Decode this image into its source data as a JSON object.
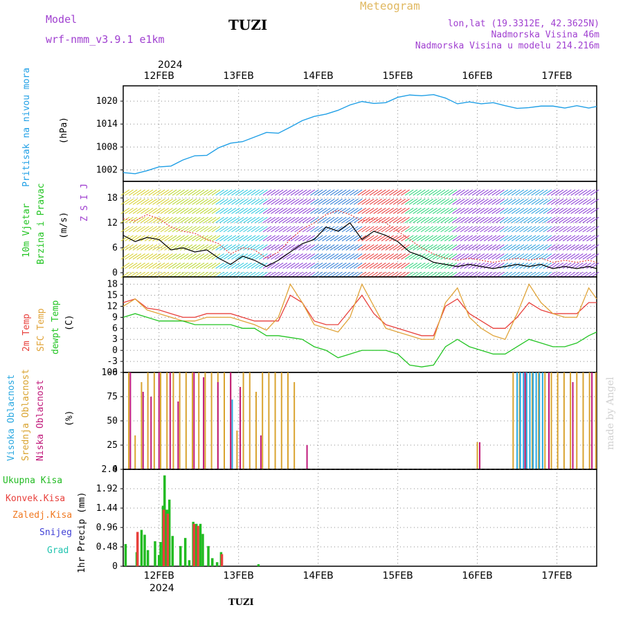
{
  "header": {
    "model_label": "Model",
    "model_name": "wrf-nmm_v3.9.1 e1km",
    "station_title": "TUZI",
    "meteogram_label": "Meteogram",
    "coords": "lon,lat (19.3312E, 42.3625N)",
    "elevation": "Nadmorska Visina 46m",
    "model_elevation": "Nadmorska Visina u modelu 214.216m",
    "year_top": "2024",
    "year_bottom": "2024",
    "footer_station": "TUZI",
    "watermark": "made by Angel"
  },
  "colors": {
    "pressure": "#1f9fe6",
    "temp2m": "#e8403c",
    "sfc_temp": "#e0a43a",
    "dewpoint": "#22c422",
    "high_cloud": "#2aa8e0",
    "mid_cloud": "#d9a32f",
    "low_cloud": "#c0187a",
    "total_precip": "#22bb22",
    "conv_precip": "#e8403c",
    "frozen_precip": "#f07820",
    "snow": "#3f3fd6",
    "graupel": "#22c4b0",
    "wind_label": "#22c422",
    "wind_dir": "#a040d0"
  },
  "x_dates": [
    "12FEB",
    "13FEB",
    "14FEB",
    "15FEB",
    "16FEB",
    "17FEB"
  ],
  "chart_data": [
    {
      "type": "line",
      "panel": "pressure",
      "ylabel_top": "Pritisak na nivou mora",
      "unit": "(hPa)",
      "yticks": [
        1002,
        1008,
        1014,
        1020
      ],
      "ylim": [
        999,
        1024
      ],
      "xlim": [
        11.55,
        17.5
      ],
      "grid": true,
      "x": [
        11.55,
        11.7,
        11.85,
        12.0,
        12.15,
        12.3,
        12.45,
        12.6,
        12.75,
        12.9,
        13.05,
        13.2,
        13.35,
        13.5,
        13.65,
        13.8,
        13.95,
        14.1,
        14.25,
        14.4,
        14.55,
        14.7,
        14.85,
        15.0,
        15.15,
        15.3,
        15.45,
        15.6,
        15.75,
        15.9,
        16.05,
        16.2,
        16.35,
        16.5,
        16.65,
        16.8,
        16.95,
        17.1,
        17.25,
        17.4,
        17.5
      ],
      "values": [
        1001.3,
        1001.0,
        1001.8,
        1002.8,
        1003.0,
        1004.6,
        1005.7,
        1005.8,
        1007.8,
        1009.0,
        1009.4,
        1010.6,
        1011.8,
        1011.6,
        1013.2,
        1014.9,
        1016.0,
        1016.6,
        1017.6,
        1019.0,
        1019.9,
        1019.4,
        1019.6,
        1021.0,
        1021.6,
        1021.4,
        1021.7,
        1020.8,
        1019.3,
        1019.8,
        1019.3,
        1019.6,
        1018.8,
        1018.1,
        1018.3,
        1018.7,
        1018.7,
        1018.2,
        1018.8,
        1018.2,
        1018.6
      ],
      "series_name": "",
      "line_color_key": "pressure"
    },
    {
      "type": "line",
      "panel": "wind",
      "ylabel_top": "10m Vjetar",
      "ylabel_bottom": "Brzina i Pravac",
      "unit": "(m/s)",
      "compass": "Z S I J",
      "yticks": [
        0,
        6,
        12,
        18
      ],
      "ylim": [
        -1,
        22
      ],
      "xlim": [
        11.55,
        17.5
      ],
      "grid": true,
      "series": [
        {
          "name": "",
          "x": [
            11.55,
            11.7,
            11.85,
            12.0,
            12.15,
            12.3,
            12.45,
            12.6,
            12.75,
            12.9,
            13.05,
            13.2,
            13.35,
            13.5,
            13.65,
            13.8,
            13.95,
            14.1,
            14.25,
            14.4,
            14.55,
            14.7,
            14.85,
            15.0,
            15.15,
            15.3,
            15.45,
            15.6,
            15.75,
            15.9,
            16.05,
            16.2,
            16.35,
            16.5,
            16.65,
            16.8,
            16.95,
            17.1,
            17.25,
            17.4,
            17.5
          ],
          "values": [
            9.0,
            7.5,
            8.5,
            8.0,
            5.5,
            6.0,
            5.0,
            5.5,
            3.5,
            2.0,
            4.0,
            3.0,
            1.5,
            3.0,
            5.0,
            7.0,
            8.0,
            11.0,
            10.0,
            12.0,
            8.0,
            10.0,
            9.0,
            7.5,
            5.0,
            4.0,
            2.5,
            2.0,
            1.5,
            2.0,
            1.5,
            1.0,
            1.5,
            2.0,
            1.5,
            2.0,
            1.0,
            1.5,
            1.0,
            1.5,
            1.0
          ]
        },
        {
          "name": "",
          "x": [
            11.55,
            11.7,
            11.85,
            12.0,
            12.15,
            12.3,
            12.45,
            12.6,
            12.75,
            12.9,
            13.05,
            13.2,
            13.35,
            13.5,
            13.65,
            13.8,
            13.95,
            14.1,
            14.25,
            14.4,
            14.55,
            14.7,
            14.85,
            15.0,
            15.15,
            15.3,
            15.45,
            15.6,
            15.75,
            15.9,
            16.05,
            16.2,
            16.35,
            16.5,
            16.65,
            16.8,
            16.95,
            17.1,
            17.25,
            17.4,
            17.5
          ],
          "values": [
            13.0,
            12.5,
            14.0,
            13.0,
            11.0,
            10.0,
            9.5,
            8.0,
            7.0,
            4.5,
            6.0,
            5.5,
            3.5,
            5.0,
            8.0,
            10.5,
            12.0,
            14.0,
            15.0,
            14.0,
            12.5,
            13.0,
            12.0,
            10.0,
            8.0,
            6.0,
            4.5,
            3.5,
            3.0,
            3.5,
            3.0,
            2.5,
            3.0,
            3.5,
            3.0,
            3.5,
            2.5,
            3.0,
            2.5,
            3.0,
            2.5
          ]
        }
      ]
    },
    {
      "type": "line",
      "panel": "temperature",
      "ylabels": [
        "2m Temp",
        "SFC Temp",
        "dewpt Temp"
      ],
      "unit": "(C)",
      "yticks": [
        -6,
        -3,
        0,
        3,
        6,
        9,
        12,
        15,
        18
      ],
      "ylim": [
        -6,
        20
      ],
      "xlim": [
        11.55,
        17.5
      ],
      "grid": true,
      "x": [
        11.55,
        11.7,
        11.85,
        12.0,
        12.15,
        12.3,
        12.45,
        12.6,
        12.75,
        12.9,
        13.05,
        13.2,
        13.35,
        13.5,
        13.65,
        13.8,
        13.95,
        14.1,
        14.25,
        14.4,
        14.55,
        14.7,
        14.85,
        15.0,
        15.15,
        15.3,
        15.45,
        15.6,
        15.75,
        15.9,
        16.05,
        16.2,
        16.35,
        16.5,
        16.65,
        16.8,
        16.95,
        17.1,
        17.25,
        17.4,
        17.5
      ],
      "series": [
        {
          "name": "2m Temp",
          "color_key": "temp2m",
          "values": [
            13,
            14,
            11.5,
            11,
            10,
            9,
            9,
            10,
            10,
            10,
            9,
            8,
            8,
            8,
            15,
            13,
            8,
            7,
            7,
            11,
            15,
            10,
            7,
            6,
            5,
            4,
            4,
            12,
            14,
            10,
            8,
            6,
            6,
            9,
            13,
            11,
            10,
            10,
            10,
            13,
            13
          ]
        },
        {
          "name": "SFC Temp",
          "color_key": "sfc_temp",
          "values": [
            12,
            14,
            11,
            10,
            9,
            8,
            8,
            9,
            9,
            9,
            8,
            7,
            5.5,
            9,
            18,
            13,
            7,
            6,
            5,
            9,
            18,
            12,
            6,
            5,
            4,
            3,
            3,
            13,
            17,
            9,
            6,
            4,
            3,
            10,
            18,
            13,
            10,
            9,
            9,
            17,
            14
          ]
        },
        {
          "name": "dewpt Temp",
          "color_key": "dewpoint",
          "values": [
            9,
            10,
            9,
            8,
            8,
            8,
            7,
            7,
            7,
            7,
            6,
            6,
            4,
            4,
            3.5,
            3,
            1,
            0,
            -2,
            -1,
            0,
            0,
            0,
            -1,
            -4,
            -4.5,
            -4,
            1,
            3,
            1,
            0,
            -1,
            -1,
            1,
            3,
            2,
            1,
            1,
            2,
            4,
            5
          ]
        }
      ]
    },
    {
      "type": "bar",
      "panel": "cloud",
      "ylabels": [
        "Visoka Oblacnost",
        "Srednja Oblacnost",
        "Niska Oblacnost"
      ],
      "unit": "(%)",
      "yticks": [
        0,
        25,
        50,
        75,
        100
      ],
      "ylim": [
        0,
        100
      ],
      "xlim": [
        11.55,
        17.5
      ],
      "grid": true,
      "series": [
        {
          "name": "Srednja Oblacnost",
          "color_key": "mid_cloud",
          "x": [
            11.62,
            11.7,
            11.78,
            11.86,
            11.94,
            12.02,
            12.1,
            12.18,
            12.26,
            12.34,
            12.42,
            12.5,
            12.58,
            12.66,
            12.74,
            12.82,
            12.9,
            12.98,
            13.06,
            13.14,
            13.22,
            13.3,
            13.38,
            13.46,
            13.54,
            13.62,
            13.7,
            13.78,
            16.0,
            16.45,
            16.53,
            16.61,
            16.69,
            16.77,
            16.85,
            16.93,
            17.01,
            17.09,
            17.17,
            17.25,
            17.33,
            17.41,
            17.49
          ],
          "values": [
            100,
            35,
            90,
            100,
            100,
            100,
            100,
            100,
            100,
            100,
            100,
            100,
            100,
            100,
            100,
            100,
            100,
            40,
            100,
            100,
            80,
            100,
            100,
            100,
            100,
            100,
            90,
            0,
            28,
            100,
            100,
            100,
            100,
            100,
            100,
            100,
            100,
            100,
            100,
            100,
            100,
            100,
            100
          ]
        },
        {
          "name": "Niska Oblacnost",
          "color_key": "low_cloud",
          "x": [
            11.64,
            11.8,
            11.9,
            12.0,
            12.14,
            12.24,
            12.44,
            12.56,
            12.74,
            12.9,
            13.02,
            13.28,
            13.86,
            16.03,
            16.6,
            16.9,
            17.2,
            17.44
          ],
          "values": [
            100,
            80,
            75,
            100,
            100,
            70,
            100,
            95,
            90,
            100,
            85,
            35,
            25,
            28,
            100,
            100,
            90,
            100
          ]
        },
        {
          "name": "Visoka Oblacnost",
          "color_key": "high_cloud",
          "x": [
            12.92,
            16.5,
            16.54,
            16.58,
            16.62,
            16.66,
            16.7,
            16.74,
            16.78,
            16.82
          ],
          "values": [
            72,
            100,
            100,
            100,
            100,
            100,
            100,
            100,
            100,
            100
          ]
        }
      ]
    },
    {
      "type": "bar",
      "panel": "precip",
      "ylabels": [
        "Ukupna Kisa",
        "Konvek.Kisa",
        "Zaledj.Kisa",
        "Snijeg",
        "Grad"
      ],
      "unit": "1hr Precip (mm)",
      "yticks": [
        0,
        0.48,
        0.96,
        1.44,
        1.92,
        2.4
      ],
      "ylim": [
        0,
        2.4
      ],
      "xlim": [
        11.55,
        17.5
      ],
      "grid": true,
      "series": [
        {
          "name": "Ukupna Kisa",
          "color_key": "total_precip",
          "x": [
            11.58,
            11.72,
            11.78,
            11.82,
            11.86,
            11.95,
            12.0,
            12.02,
            12.05,
            12.07,
            12.1,
            12.13,
            12.17,
            12.27,
            12.33,
            12.38,
            12.43,
            12.47,
            12.52,
            12.55,
            12.62,
            12.67,
            12.73,
            12.78,
            13.25
          ],
          "values": [
            0.55,
            0.35,
            0.9,
            0.78,
            0.4,
            0.62,
            0.28,
            0.6,
            1.5,
            2.25,
            1.4,
            1.65,
            0.75,
            0.5,
            0.7,
            0.15,
            1.1,
            1.05,
            1.05,
            0.8,
            0.5,
            0.2,
            0.1,
            0.35,
            0.05
          ]
        },
        {
          "name": "Konvek.Kisa",
          "color_key": "conv_precip",
          "x": [
            11.73,
            12.06,
            12.11,
            12.44,
            12.49,
            12.79
          ],
          "values": [
            0.85,
            1.4,
            1.3,
            1.05,
            1.0,
            0.3
          ]
        }
      ]
    }
  ]
}
